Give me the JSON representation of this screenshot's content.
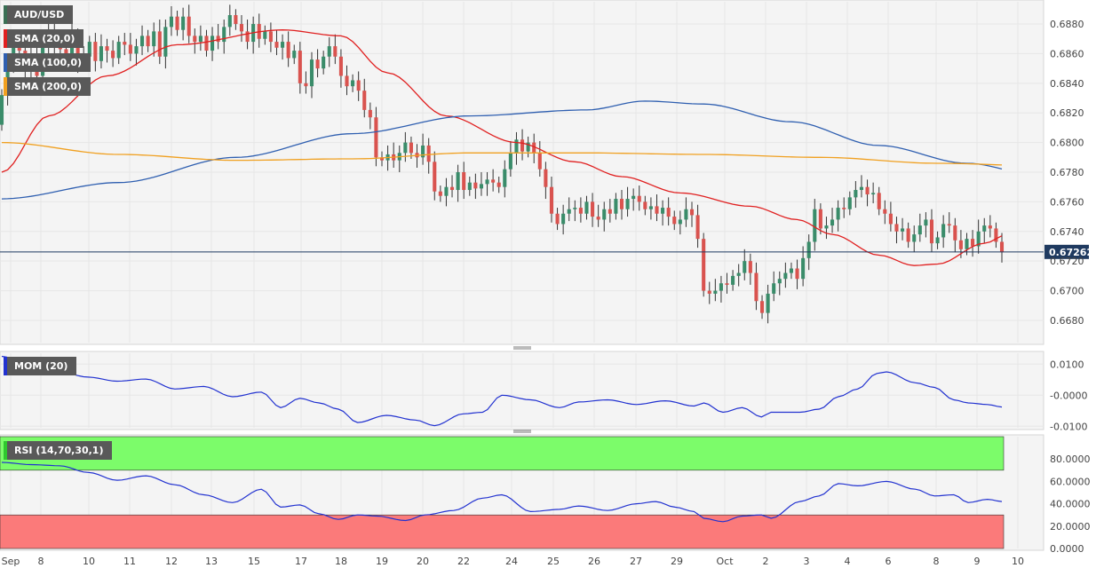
{
  "colors": {
    "bull": "#3a8c6a",
    "bear": "#d9534f",
    "sma20": "#e02020",
    "sma100": "#2f5fb0",
    "sma200": "#f0a020",
    "momentum": "#2232d0",
    "rsi": "#2232d0",
    "overbought_zone": "#7cfc6a",
    "oversold_zone": "#fb7a7a",
    "price_line": "#1f3a60",
    "price_tag_bg": "#1f3a60"
  },
  "legend": {
    "symbol": "AUD/USD",
    "sma20": "SMA (20,0)",
    "sma100": "SMA (100,0)",
    "sma200": "SMA (200,0)",
    "mom": "MOM (20)",
    "rsi": "RSI (14,70,30,1)"
  },
  "chart_data": [
    {
      "type": "candlestick",
      "panel": "price",
      "symbol": "AUD/USD",
      "ylim": [
        0.6665,
        0.6895
      ],
      "y_ticks": [
        "0.6680",
        "0.6700",
        "0.6720",
        "0.6740",
        "0.6760",
        "0.6780",
        "0.6800",
        "0.6820",
        "0.6840",
        "0.6860",
        "0.6880"
      ],
      "x_ticks": [
        "Sep",
        "8",
        "9",
        "10",
        "11",
        "12",
        "13",
        "15",
        "17",
        "18",
        "19",
        "20",
        "22",
        "24",
        "25",
        "26",
        "27",
        "29",
        "Oct",
        "2",
        "3",
        "4",
        "6",
        "8",
        "9",
        "10"
      ],
      "last_price": "0.67262",
      "last_price_value": 0.67262,
      "candles": [
        [
          0.6812,
          0.6832
        ],
        [
          0.6832,
          0.6852
        ],
        [
          0.6852,
          0.6868
        ],
        [
          0.6868,
          0.6862
        ],
        [
          0.6862,
          0.6848
        ],
        [
          0.6848,
          0.686
        ],
        [
          0.686,
          0.6845
        ],
        [
          0.6845,
          0.6865
        ],
        [
          0.6865,
          0.6876
        ],
        [
          0.6876,
          0.6866
        ],
        [
          0.6866,
          0.6863
        ],
        [
          0.6863,
          0.6856
        ],
        [
          0.6856,
          0.6872
        ],
        [
          0.6872,
          0.6855
        ],
        [
          0.6855,
          0.6858
        ],
        [
          0.6858,
          0.6868
        ],
        [
          0.6868,
          0.6855
        ],
        [
          0.6855,
          0.6865
        ],
        [
          0.6865,
          0.6862
        ],
        [
          0.6862,
          0.6857
        ],
        [
          0.6857,
          0.6868
        ],
        [
          0.6868,
          0.6866
        ],
        [
          0.6866,
          0.686
        ],
        [
          0.686,
          0.6865
        ],
        [
          0.6865,
          0.6872
        ],
        [
          0.6872,
          0.6865
        ],
        [
          0.6865,
          0.6875
        ],
        [
          0.6875,
          0.6858
        ],
        [
          0.6858,
          0.6878
        ],
        [
          0.6878,
          0.6885
        ],
        [
          0.6885,
          0.6876
        ],
        [
          0.6876,
          0.6885
        ],
        [
          0.6885,
          0.6872
        ],
        [
          0.6872,
          0.6868
        ],
        [
          0.6868,
          0.6872
        ],
        [
          0.6872,
          0.6862
        ],
        [
          0.6862,
          0.6872
        ],
        [
          0.6872,
          0.6868
        ],
        [
          0.6868,
          0.6878
        ],
        [
          0.6878,
          0.6886
        ],
        [
          0.6886,
          0.688
        ],
        [
          0.688,
          0.6875
        ],
        [
          0.6875,
          0.6868
        ],
        [
          0.6868,
          0.688
        ],
        [
          0.688,
          0.687
        ],
        [
          0.687,
          0.6875
        ],
        [
          0.6875,
          0.6868
        ],
        [
          0.6868,
          0.6864
        ],
        [
          0.6864,
          0.6868
        ],
        [
          0.6868,
          0.6857
        ],
        [
          0.6857,
          0.6862
        ],
        [
          0.6862,
          0.684
        ],
        [
          0.684,
          0.6838
        ],
        [
          0.6838,
          0.6856
        ],
        [
          0.6856,
          0.685
        ],
        [
          0.685,
          0.6858
        ],
        [
          0.6858,
          0.6865
        ],
        [
          0.6865,
          0.6858
        ],
        [
          0.6858,
          0.6845
        ],
        [
          0.6845,
          0.6838
        ],
        [
          0.6838,
          0.6842
        ],
        [
          0.6842,
          0.6835
        ],
        [
          0.6835,
          0.6822
        ],
        [
          0.6822,
          0.6817
        ],
        [
          0.6817,
          0.679
        ],
        [
          0.679,
          0.6788
        ],
        [
          0.6788,
          0.6792
        ],
        [
          0.6792,
          0.6788
        ],
        [
          0.6788,
          0.6793
        ],
        [
          0.6793,
          0.68
        ],
        [
          0.68,
          0.6793
        ],
        [
          0.6793,
          0.679
        ],
        [
          0.679,
          0.6798
        ],
        [
          0.6798,
          0.6787
        ],
        [
          0.6787,
          0.6767
        ],
        [
          0.6767,
          0.6764
        ],
        [
          0.6764,
          0.677
        ],
        [
          0.677,
          0.6768
        ],
        [
          0.6768,
          0.678
        ],
        [
          0.678,
          0.6768
        ],
        [
          0.6768,
          0.6773
        ],
        [
          0.6773,
          0.6769
        ],
        [
          0.6769,
          0.6772
        ],
        [
          0.6772,
          0.6775
        ],
        [
          0.6775,
          0.6773
        ],
        [
          0.6773,
          0.677
        ],
        [
          0.677,
          0.6782
        ],
        [
          0.6782,
          0.6793
        ],
        [
          0.6793,
          0.6802
        ],
        [
          0.6802,
          0.6794
        ],
        [
          0.6794,
          0.68
        ],
        [
          0.68,
          0.6793
        ],
        [
          0.6793,
          0.6782
        ],
        [
          0.6782,
          0.677
        ],
        [
          0.677,
          0.6752
        ],
        [
          0.6752,
          0.6745
        ],
        [
          0.6745,
          0.6752
        ],
        [
          0.6752,
          0.6755
        ],
        [
          0.6755,
          0.6756
        ],
        [
          0.6756,
          0.6752
        ],
        [
          0.6752,
          0.676
        ],
        [
          0.676,
          0.675
        ],
        [
          0.675,
          0.6748
        ],
        [
          0.6748,
          0.6755
        ],
        [
          0.6755,
          0.6752
        ],
        [
          0.6752,
          0.6762
        ],
        [
          0.6762,
          0.6755
        ],
        [
          0.6755,
          0.6762
        ],
        [
          0.6762,
          0.6764
        ],
        [
          0.6764,
          0.676
        ],
        [
          0.676,
          0.6755
        ],
        [
          0.6755,
          0.6757
        ],
        [
          0.6757,
          0.6752
        ],
        [
          0.6752,
          0.6756
        ],
        [
          0.6756,
          0.675
        ],
        [
          0.675,
          0.6745
        ],
        [
          0.6745,
          0.6748
        ],
        [
          0.6748,
          0.6755
        ],
        [
          0.6755,
          0.6751
        ],
        [
          0.6751,
          0.6735
        ],
        [
          0.6735,
          0.67
        ],
        [
          0.67,
          0.6698
        ],
        [
          0.6698,
          0.67
        ],
        [
          0.67,
          0.6705
        ],
        [
          0.6705,
          0.6704
        ],
        [
          0.6704,
          0.671
        ],
        [
          0.671,
          0.6712
        ],
        [
          0.6712,
          0.672
        ],
        [
          0.672,
          0.6712
        ],
        [
          0.6712,
          0.6693
        ],
        [
          0.6693,
          0.6685
        ],
        [
          0.6685,
          0.6698
        ],
        [
          0.6698,
          0.6705
        ],
        [
          0.6705,
          0.6708
        ],
        [
          0.6708,
          0.6712
        ],
        [
          0.6712,
          0.6715
        ],
        [
          0.6715,
          0.6708
        ],
        [
          0.6708,
          0.6722
        ],
        [
          0.6722,
          0.6733
        ],
        [
          0.6733,
          0.6755
        ],
        [
          0.6755,
          0.6742
        ],
        [
          0.6742,
          0.6744
        ],
        [
          0.6744,
          0.6748
        ],
        [
          0.6748,
          0.6756
        ],
        [
          0.6756,
          0.6755
        ],
        [
          0.6755,
          0.6763
        ],
        [
          0.6763,
          0.6768
        ],
        [
          0.6768,
          0.677
        ],
        [
          0.677,
          0.6765
        ],
        [
          0.6765,
          0.6766
        ],
        [
          0.6766,
          0.6755
        ],
        [
          0.6755,
          0.6752
        ],
        [
          0.6752,
          0.6745
        ],
        [
          0.6745,
          0.674
        ],
        [
          0.674,
          0.6742
        ],
        [
          0.6742,
          0.6733
        ],
        [
          0.6733,
          0.6738
        ],
        [
          0.6738,
          0.6744
        ],
        [
          0.6744,
          0.6748
        ],
        [
          0.6748,
          0.6732
        ],
        [
          0.6732,
          0.6736
        ],
        [
          0.6736,
          0.6745
        ],
        [
          0.6745,
          0.6744
        ],
        [
          0.6744,
          0.6734
        ],
        [
          0.6734,
          0.6728
        ],
        [
          0.6728,
          0.6735
        ],
        [
          0.6735,
          0.673
        ],
        [
          0.673,
          0.674
        ],
        [
          0.674,
          0.6744
        ],
        [
          0.6744,
          0.6742
        ],
        [
          0.6742,
          0.6733
        ],
        [
          0.6733,
          0.6726
        ]
      ],
      "series": [
        {
          "name": "SMA (20,0)",
          "key": "sma20",
          "anchors": [
            [
              0,
              0.678
            ],
            [
              8,
              0.6818
            ],
            [
              18,
              0.6845
            ],
            [
              30,
              0.6866
            ],
            [
              48,
              0.6876
            ],
            [
              58,
              0.6872
            ],
            [
              66,
              0.6847
            ],
            [
              76,
              0.6818
            ],
            [
              88,
              0.68
            ],
            [
              98,
              0.6787
            ],
            [
              106,
              0.6777
            ],
            [
              116,
              0.6766
            ],
            [
              128,
              0.6757
            ],
            [
              136,
              0.6748
            ],
            [
              142,
              0.6738
            ],
            [
              150,
              0.6724
            ],
            [
              156,
              0.6717
            ],
            [
              160,
              0.6718
            ],
            [
              168,
              0.6732
            ],
            [
              172,
              0.6738
            ],
            [
              180,
              0.6745
            ],
            [
              190,
              0.6748
            ],
            [
              196,
              0.6744
            ],
            [
              199,
              0.6742
            ]
          ]
        },
        {
          "name": "SMA (100,0)",
          "key": "sma100",
          "anchors": [
            [
              0,
              0.6762
            ],
            [
              20,
              0.6773
            ],
            [
              40,
              0.679
            ],
            [
              60,
              0.6806
            ],
            [
              80,
              0.6818
            ],
            [
              100,
              0.6822
            ],
            [
              110,
              0.6828
            ],
            [
              120,
              0.6826
            ],
            [
              135,
              0.6814
            ],
            [
              150,
              0.6798
            ],
            [
              165,
              0.6786
            ],
            [
              180,
              0.6775
            ],
            [
              190,
              0.6765
            ],
            [
              199,
              0.676
            ]
          ]
        },
        {
          "name": "SMA (200,0)",
          "key": "sma200",
          "anchors": [
            [
              0,
              0.68
            ],
            [
              20,
              0.6792
            ],
            [
              40,
              0.6788
            ],
            [
              60,
              0.6789
            ],
            [
              80,
              0.6793
            ],
            [
              100,
              0.6793
            ],
            [
              120,
              0.6792
            ],
            [
              140,
              0.679
            ],
            [
              160,
              0.6786
            ],
            [
              180,
              0.6784
            ],
            [
              199,
              0.6783
            ]
          ]
        }
      ]
    },
    {
      "type": "line",
      "panel": "momentum",
      "name": "MOM (20)",
      "ylim": [
        -0.0105,
        0.0135
      ],
      "y_ticks": [
        "0.0100",
        "-0.0000",
        "-0.0100"
      ],
      "anchors": [
        [
          0,
          0.0125
        ],
        [
          4,
          0.011
        ],
        [
          8,
          0.009
        ],
        [
          12,
          0.0075
        ],
        [
          18,
          0.0058
        ],
        [
          24,
          0.0045
        ],
        [
          30,
          0.0052
        ],
        [
          36,
          0.002
        ],
        [
          42,
          0.0028
        ],
        [
          48,
          -0.0005
        ],
        [
          54,
          0.001
        ],
        [
          58,
          -0.004
        ],
        [
          62,
          -0.001
        ],
        [
          66,
          -0.0025
        ],
        [
          70,
          -0.0045
        ],
        [
          74,
          -0.0088
        ],
        [
          80,
          -0.0065
        ],
        [
          86,
          -0.008
        ],
        [
          90,
          -0.0098
        ],
        [
          96,
          -0.006
        ],
        [
          100,
          -0.0055
        ],
        [
          104,
          0.0
        ],
        [
          110,
          -0.0015
        ],
        [
          116,
          -0.004
        ],
        [
          120,
          -0.0022
        ],
        [
          126,
          -0.0015
        ],
        [
          132,
          -0.003
        ],
        [
          138,
          -0.0018
        ],
        [
          144,
          -0.0035
        ],
        [
          146,
          -0.0025
        ],
        [
          150,
          -0.0055
        ],
        [
          154,
          -0.004
        ],
        [
          158,
          -0.007
        ],
        [
          160,
          -0.0055
        ],
        [
          166,
          -0.0055
        ],
        [
          170,
          -0.0045
        ],
        [
          174,
          -0.0005
        ],
        [
          178,
          0.002
        ],
        [
          182,
          0.007
        ],
        [
          184,
          0.0075
        ],
        [
          190,
          0.004
        ],
        [
          194,
          0.0025
        ],
        [
          198,
          -0.0015
        ],
        [
          201,
          -0.0025
        ],
        [
          205,
          -0.003
        ],
        [
          208,
          -0.0038
        ]
      ]
    },
    {
      "type": "line",
      "panel": "rsi",
      "name": "RSI (14,70,30,1)",
      "ylim": [
        0,
        100
      ],
      "y_ticks": [
        "80.0000",
        "60.0000",
        "40.0000",
        "20.0000",
        "0.0000"
      ],
      "overbought": 70,
      "oversold": 30,
      "anchors": [
        [
          0,
          77
        ],
        [
          6,
          75
        ],
        [
          12,
          74
        ],
        [
          18,
          68
        ],
        [
          24,
          61
        ],
        [
          30,
          65
        ],
        [
          36,
          57
        ],
        [
          42,
          48
        ],
        [
          48,
          41
        ],
        [
          54,
          53
        ],
        [
          58,
          37
        ],
        [
          62,
          39
        ],
        [
          66,
          31
        ],
        [
          70,
          26
        ],
        [
          74,
          30
        ],
        [
          78,
          29
        ],
        [
          84,
          25
        ],
        [
          88,
          30
        ],
        [
          94,
          34
        ],
        [
          100,
          45
        ],
        [
          104,
          48
        ],
        [
          110,
          33
        ],
        [
          116,
          35
        ],
        [
          120,
          38
        ],
        [
          126,
          34
        ],
        [
          132,
          40
        ],
        [
          136,
          42
        ],
        [
          140,
          37
        ],
        [
          144,
          33
        ],
        [
          146,
          27
        ],
        [
          150,
          24
        ],
        [
          154,
          29
        ],
        [
          158,
          30
        ],
        [
          160,
          27
        ],
        [
          166,
          42
        ],
        [
          170,
          47
        ],
        [
          174,
          58
        ],
        [
          178,
          56
        ],
        [
          184,
          60
        ],
        [
          190,
          53
        ],
        [
          194,
          47
        ],
        [
          198,
          48
        ],
        [
          201,
          41
        ],
        [
          205,
          44
        ],
        [
          208,
          42
        ]
      ]
    }
  ]
}
